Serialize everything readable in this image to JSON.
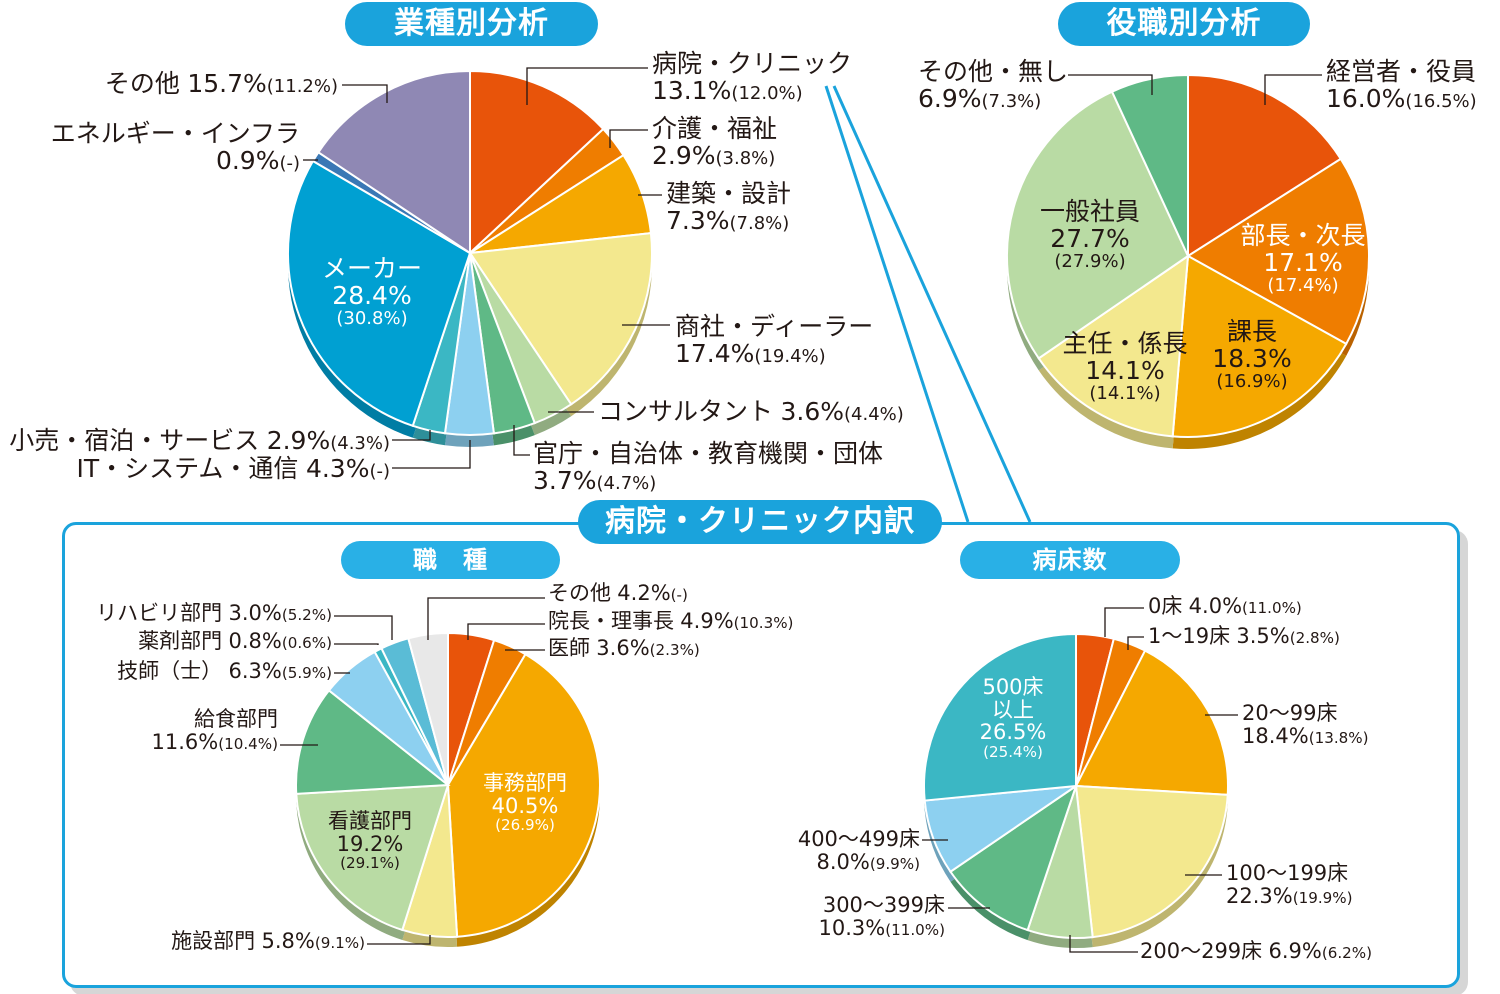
{
  "titles": {
    "industry": "業種別分析",
    "position": "役職別分析",
    "breakdown": "病院・クリニック内訳",
    "job": "職　種",
    "beds": "病床数"
  },
  "chart_data": [
    {
      "type": "pie",
      "title": "業種別分析",
      "slices": [
        {
          "label": "病院・クリニック",
          "value": 13.1,
          "pct": "13.1%",
          "prev": "(12.0%)",
          "color": "#e8540a"
        },
        {
          "label": "介護・福祉",
          "value": 2.9,
          "pct": "2.9%",
          "prev": "(3.8%)",
          "color": "#ef7d00"
        },
        {
          "label": "建築・設計",
          "value": 7.3,
          "pct": "7.3%",
          "prev": "(7.8%)",
          "color": "#f5a800"
        },
        {
          "label": "商社・ディーラー",
          "value": 17.4,
          "pct": "17.4%",
          "prev": "(19.4%)",
          "color": "#f3e88e"
        },
        {
          "label": "コンサルタント",
          "value": 3.6,
          "pct": "3.6%",
          "prev": "(4.4%)",
          "color": "#b9dba4"
        },
        {
          "label": "官庁・自治体・教育機関・団体",
          "value": 3.7,
          "pct": "3.7%",
          "prev": "(4.7%)",
          "color": "#5fb986"
        },
        {
          "label": "IT・システム・通信",
          "value": 4.3,
          "pct": "4.3%",
          "prev": "(-)",
          "color": "#8dd0f0"
        },
        {
          "label": "小売・宿泊・サービス",
          "value": 2.9,
          "pct": "2.9%",
          "prev": "(4.3%)",
          "color": "#3bb7c4"
        },
        {
          "label": "メーカー",
          "value": 28.4,
          "pct": "28.4%",
          "prev": "(30.8%)",
          "color": "#00a0d2"
        },
        {
          "label": "エネルギー・インフラ",
          "value": 0.9,
          "pct": "0.9%",
          "prev": "(-)",
          "color": "#3a78b5"
        },
        {
          "label": "その他",
          "value": 15.7,
          "pct": "15.7%",
          "prev": "(11.2%)",
          "color": "#8f88b4"
        }
      ]
    },
    {
      "type": "pie",
      "title": "役職別分析",
      "slices": [
        {
          "label": "経営者・役員",
          "value": 16.0,
          "pct": "16.0%",
          "prev": "(16.5%)",
          "color": "#e8540a"
        },
        {
          "label": "部長・次長",
          "value": 17.1,
          "pct": "17.1%",
          "prev": "(17.4%)",
          "color": "#ef7d00"
        },
        {
          "label": "課長",
          "value": 18.3,
          "pct": "18.3%",
          "prev": "(16.9%)",
          "color": "#f5a800"
        },
        {
          "label": "主任・係長",
          "value": 14.1,
          "pct": "14.1%",
          "prev": "(14.1%)",
          "color": "#f3e88e"
        },
        {
          "label": "一般社員",
          "value": 27.7,
          "pct": "27.7%",
          "prev": "(27.9%)",
          "color": "#b9dba4"
        },
        {
          "label": "その他・無し",
          "value": 6.9,
          "pct": "6.9%",
          "prev": "(7.3%)",
          "color": "#5fb986"
        }
      ]
    },
    {
      "type": "pie",
      "title": "職　種",
      "slices": [
        {
          "label": "院長・理事長",
          "value": 4.9,
          "pct": "4.9%",
          "prev": "(10.3%)",
          "color": "#e8540a"
        },
        {
          "label": "医師",
          "value": 3.6,
          "pct": "3.6%",
          "prev": "(2.3%)",
          "color": "#ef7d00"
        },
        {
          "label": "事務部門",
          "value": 40.5,
          "pct": "40.5%",
          "prev": "(26.9%)",
          "color": "#f5a800"
        },
        {
          "label": "施設部門",
          "value": 5.8,
          "pct": "5.8%",
          "prev": "(9.1%)",
          "color": "#f3e88e"
        },
        {
          "label": "看護部門",
          "value": 19.2,
          "pct": "19.2%",
          "prev": "(29.1%)",
          "color": "#b9dba4"
        },
        {
          "label": "給食部門",
          "value": 11.6,
          "pct": "11.6%",
          "prev": "(10.4%)",
          "color": "#5fb986"
        },
        {
          "label": "技師（士）",
          "value": 6.3,
          "pct": "6.3%",
          "prev": "(5.9%)",
          "color": "#8dd0f0"
        },
        {
          "label": "薬剤部門",
          "value": 0.8,
          "pct": "0.8%",
          "prev": "(0.6%)",
          "color": "#3bb7c4"
        },
        {
          "label": "リハビリ部門",
          "value": 3.0,
          "pct": "3.0%",
          "prev": "(5.2%)",
          "color": "#5abcd6"
        },
        {
          "label": "その他",
          "value": 4.2,
          "pct": "4.2%",
          "prev": "(-)",
          "color": "#e8e8e8"
        }
      ]
    },
    {
      "type": "pie",
      "title": "病床数",
      "slices": [
        {
          "label": "0床",
          "value": 4.0,
          "pct": "4.0%",
          "prev": "(11.0%)",
          "color": "#e8540a"
        },
        {
          "label": "1～19床",
          "value": 3.5,
          "pct": "3.5%",
          "prev": "(2.8%)",
          "color": "#ef7d00"
        },
        {
          "label": "20～99床",
          "value": 18.4,
          "pct": "18.4%",
          "prev": "(13.8%)",
          "color": "#f5a800"
        },
        {
          "label": "100～199床",
          "value": 22.3,
          "pct": "22.3%",
          "prev": "(19.9%)",
          "color": "#f3e88e"
        },
        {
          "label": "200～299床",
          "value": 6.9,
          "pct": "6.9%",
          "prev": "(6.2%)",
          "color": "#b9dba4"
        },
        {
          "label": "300～399床",
          "value": 10.3,
          "pct": "10.3%",
          "prev": "(11.0%)",
          "color": "#5fb986"
        },
        {
          "label": "400～499床",
          "value": 8.0,
          "pct": "8.0%",
          "prev": "(9.9%)",
          "color": "#8dd0f0"
        },
        {
          "label": "500床\n以上",
          "value": 26.5,
          "pct": "26.5%",
          "prev": "(25.4%)",
          "color": "#3bb7c4"
        }
      ]
    }
  ]
}
